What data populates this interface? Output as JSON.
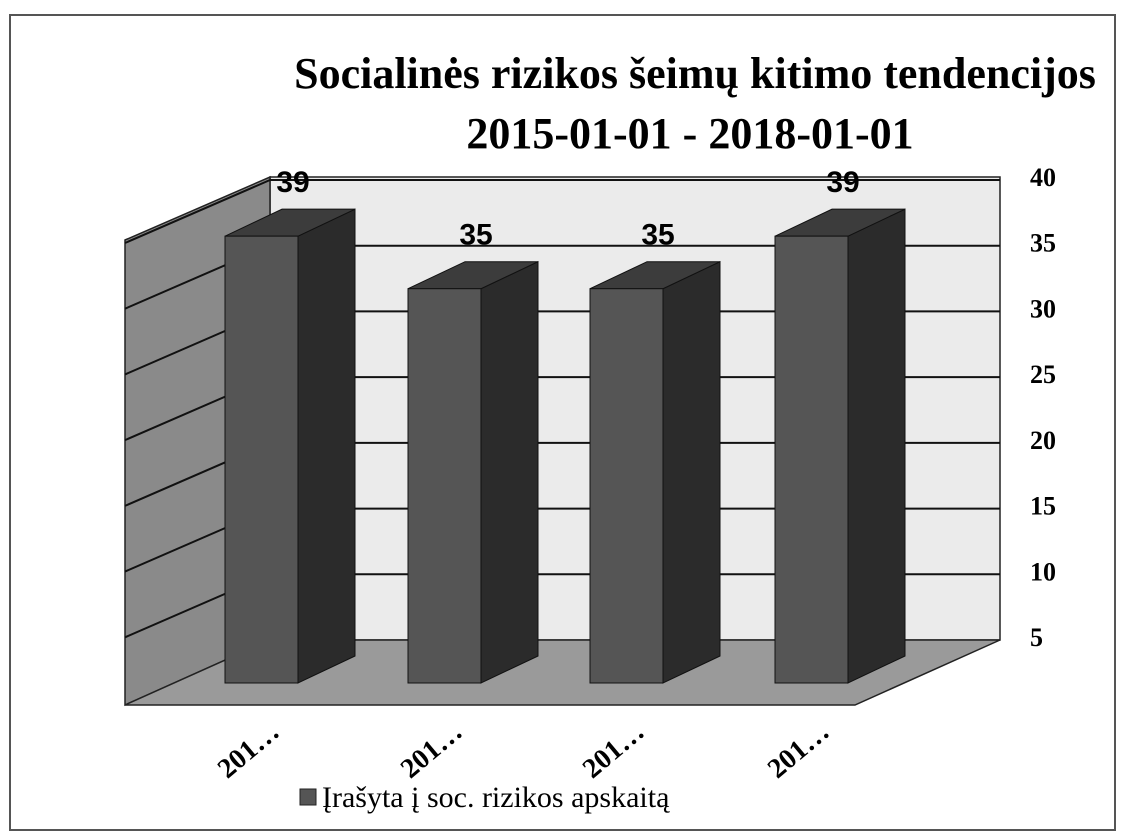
{
  "chart_data": {
    "type": "bar3d",
    "title": "Socialinės rizikos šeimų kitimo tendencijos",
    "subtitle": "2015-01-01 - 2018-01-01",
    "categories": [
      "201…",
      "201…",
      "201…",
      "201…"
    ],
    "series": [
      {
        "name": "Įrašyta į soc. rizikos apskaitą",
        "color": "#555555",
        "values": [
          39,
          35,
          35,
          39
        ]
      }
    ],
    "ylim": [
      5,
      40
    ],
    "yticks": [
      5,
      10,
      15,
      20,
      25,
      30,
      35,
      40
    ],
    "grid": true
  }
}
